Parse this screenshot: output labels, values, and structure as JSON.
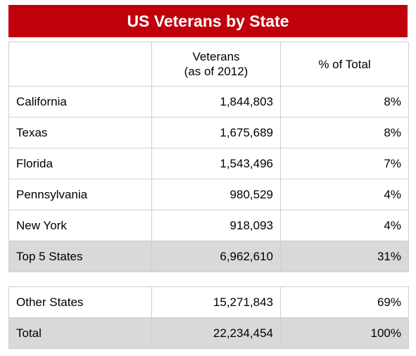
{
  "title": "US Veterans by State",
  "header": {
    "col_state": "",
    "col_veterans_line1": "Veterans",
    "col_veterans_line2": "(as of 2012)",
    "col_percent": "% of Total"
  },
  "rows": [
    {
      "state": "California",
      "veterans": "1,844,803",
      "percent": "8%"
    },
    {
      "state": "Texas",
      "veterans": "1,675,689",
      "percent": "8%"
    },
    {
      "state": "Florida",
      "veterans": "1,543,496",
      "percent": "7%"
    },
    {
      "state": "Pennsylvania",
      "veterans": "980,529",
      "percent": "4%"
    },
    {
      "state": "New York",
      "veterans": "918,093",
      "percent": "4%"
    }
  ],
  "top5": {
    "state": "Top 5 States",
    "veterans": "6,962,610",
    "percent": "31%"
  },
  "other": {
    "state": "Other States",
    "veterans": "15,271,843",
    "percent": "69%"
  },
  "total": {
    "state": "Total",
    "veterans": "22,234,454",
    "percent": "100%"
  },
  "colors": {
    "title_bg": "#c0000b",
    "title_text": "#ffffff",
    "shaded_row": "#d9d9d9",
    "grid_line": "#cfcfcf"
  }
}
